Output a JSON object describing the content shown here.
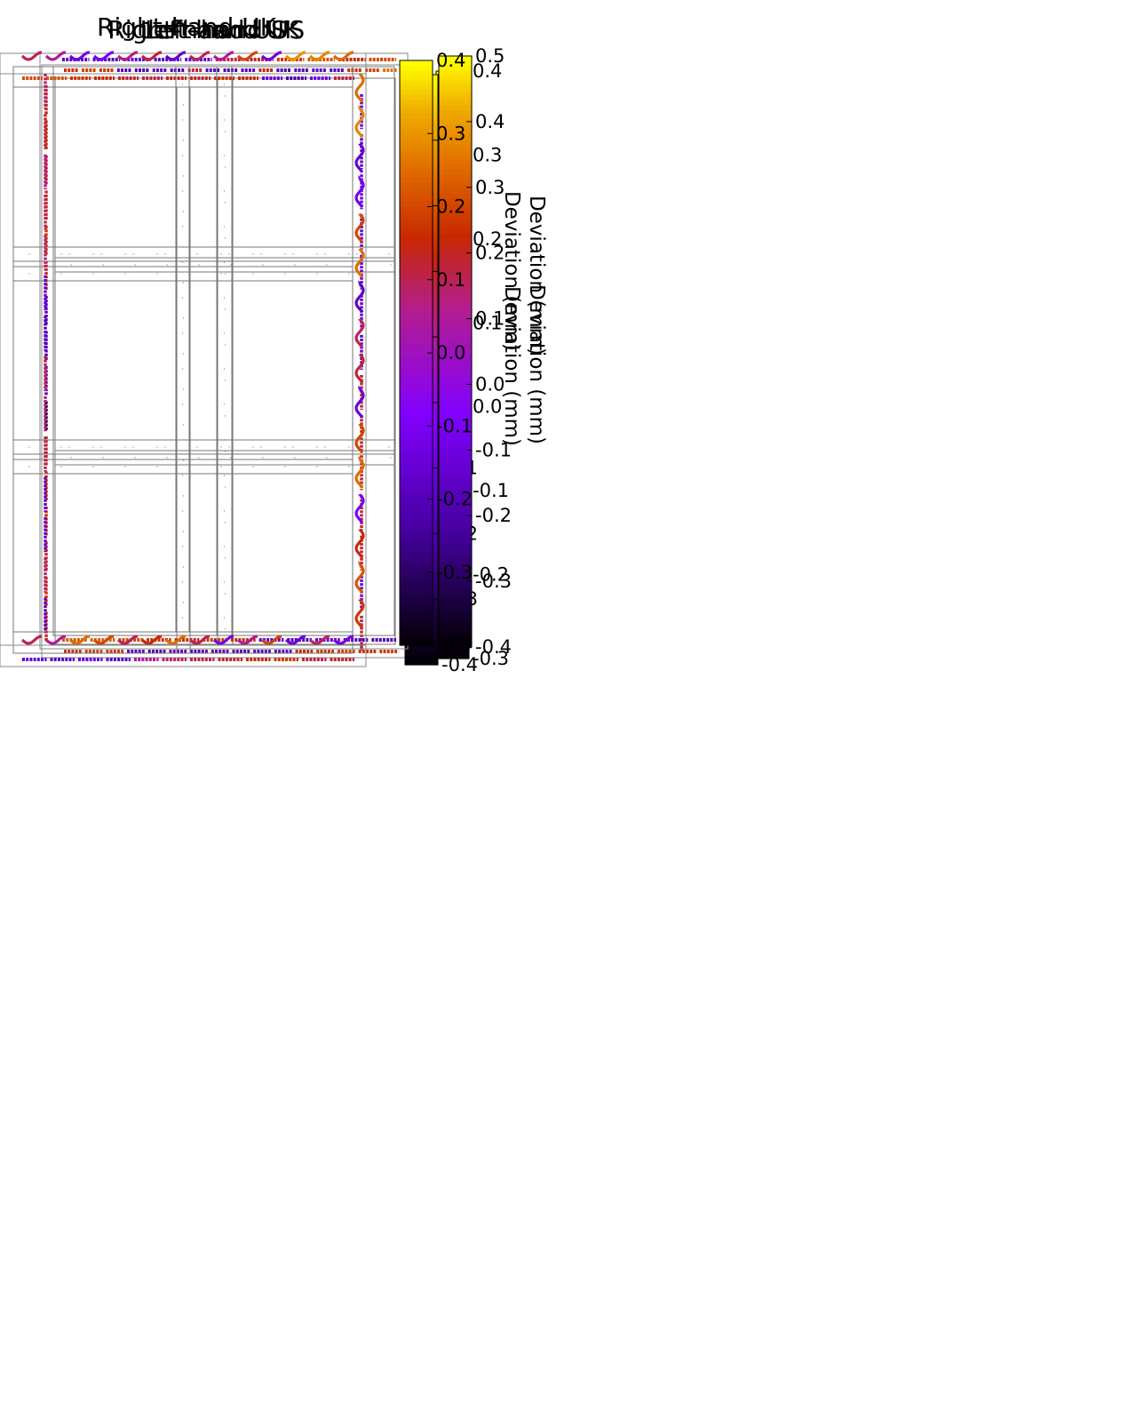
{
  "chart_data": [
    {
      "type": "heatmap",
      "title": "Left-hand UK",
      "colorbar": {
        "label": "Deviation (mm)",
        "range": [
          -0.3,
          0.4
        ],
        "ticks": [
          "0.4",
          "0.3",
          "0.2",
          "0.1",
          "0.0",
          "-0.1",
          "-0.2",
          "-0.3"
        ]
      },
      "edge_deviation_mm": {
        "top": [
          0.2,
          0.22,
          0.21,
          -0.12,
          -0.14,
          -0.1,
          -0.13,
          0.15,
          -0.12,
          -0.14,
          -0.11,
          0.18,
          -0.13,
          -0.12,
          -0.1,
          -0.12,
          0.2,
          0.22,
          0.28
        ],
        "left": [
          0.18,
          0.2,
          0.17,
          0.19,
          0.21,
          0.18,
          -0.12,
          -0.14,
          -0.1,
          -0.25,
          0.18,
          0.2,
          0.19,
          0.17,
          0.21,
          0.18
        ],
        "bottom": [
          0.2,
          0.22,
          0.21,
          -0.12,
          -0.14,
          -0.1,
          -0.13,
          -0.12,
          -0.14,
          -0.11,
          -0.1,
          0.18,
          0.2,
          0.22,
          0.2,
          0.21
        ]
      }
    },
    {
      "type": "heatmap",
      "title": "Right-hand US",
      "colorbar": {
        "label": "Deviation (mm)",
        "range": [
          -0.4,
          0.5
        ],
        "ticks": [
          "0.5",
          "0.4",
          "0.3",
          "0.2",
          "0.1",
          "0.0",
          "-0.1",
          "-0.2",
          "-0.3",
          "-0.4"
        ]
      },
      "edge_deviation_mm": {
        "top": [
          0.28,
          0.3,
          0.25,
          0.22,
          0.2,
          0.18,
          0.21,
          0.2,
          0.24,
          0.22,
          -0.12,
          -0.2,
          -0.1,
          0.18
        ],
        "right": [
          -0.12,
          -0.14,
          -0.1,
          -0.13,
          -0.11,
          -0.12,
          -0.14,
          0.18,
          0.2,
          0.21,
          0.19,
          0.2,
          -0.12,
          0.18
        ],
        "bottom": [
          -0.12,
          -0.14,
          -0.1,
          -0.15,
          0.1,
          0.15,
          0.18,
          0.2,
          0.22,
          0.25,
          0.18,
          0.2
        ]
      }
    },
    {
      "type": "heatmap",
      "title": "Left-hand US",
      "colorbar": {
        "label": "Deviation (mm)",
        "range": [
          -0.4,
          0.5
        ],
        "ticks": [
          "0.5",
          "0.4",
          "0.3",
          "0.2",
          "0.1",
          "0.0",
          "-0.1",
          "-0.2",
          "-0.3",
          "-0.4"
        ]
      },
      "edge_deviation_mm": {
        "top": [
          -0.15,
          -0.18,
          -0.12,
          -0.16,
          -0.14,
          0.18,
          0.2,
          0.25,
          0.3,
          0.22,
          0.28
        ],
        "left": [
          0.15,
          0.18,
          0.12,
          0.16,
          0.14,
          -0.12,
          -0.15,
          0.18,
          0.14,
          0.16,
          -0.14,
          -0.12,
          0.15,
          -0.15
        ],
        "bottom": [
          0.3,
          0.32,
          0.28,
          0.25,
          0.22,
          0.26,
          0.24,
          -0.14,
          -0.16,
          -0.12,
          -0.15,
          -0.18
        ]
      }
    },
    {
      "type": "heatmap",
      "title": "Right-hand UK",
      "colorbar": {
        "label": "Deviation (mm)",
        "range": [
          -0.4,
          0.4
        ],
        "ticks": [
          "0.4",
          "0.3",
          "0.2",
          "0.1",
          "0.0",
          "-0.1",
          "-0.2",
          "-0.3",
          "-0.4"
        ]
      },
      "edge_deviation_mm": {
        "top": [
          0.1,
          0.05,
          -0.12,
          -0.1,
          0.08,
          0.12,
          -0.15,
          0.1,
          0.05,
          0.2,
          -0.12,
          0.3,
          0.28,
          0.25
        ],
        "right": [
          0.25,
          0.28,
          -0.15,
          -0.12,
          0.2,
          0.25,
          -0.18,
          0.1,
          0.12,
          -0.15,
          0.2,
          0.25,
          -0.1,
          0.15,
          0.22,
          0.18
        ],
        "bottom": [
          0.1,
          0.05,
          0.25,
          0.2,
          0.1,
          0.15,
          0.25,
          0.1,
          -0.12,
          0.05,
          0.2,
          -0.15,
          0.1,
          -0.12
        ]
      }
    }
  ]
}
